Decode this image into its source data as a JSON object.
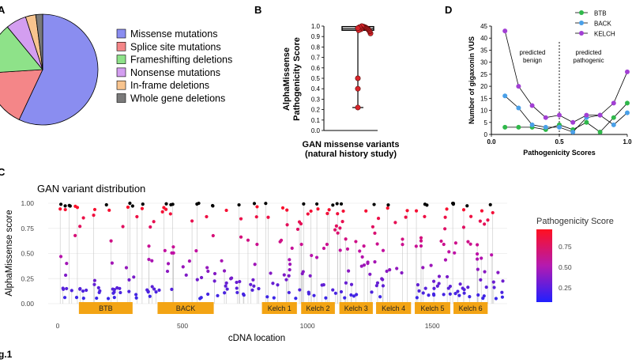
{
  "figure_caption": "g.1",
  "panels": {
    "A": {
      "letter": "A"
    },
    "B": {
      "letter": "B"
    },
    "C": {
      "letter": "C"
    },
    "D": {
      "letter": "D"
    }
  },
  "chart_data": [
    {
      "id": "A",
      "type": "pie",
      "title": "",
      "categories": [
        "Missense mutations",
        "Splice site mutations",
        "Frameshifting deletions",
        "Nonsense mutations",
        "In-frame deletions",
        "Whole gene deletions"
      ],
      "values": [
        57,
        17,
        15,
        6,
        3,
        2
      ],
      "colors": [
        "#8a8df0",
        "#f48688",
        "#8ee289",
        "#d39ef0",
        "#f8c48e",
        "#7a7a7a"
      ]
    },
    {
      "id": "B",
      "type": "scatter",
      "title": "",
      "xlabel": "GAN missense variants\n(natural history study)",
      "xlabel_lines": [
        "GAN missense variants",
        "(natural history study)"
      ],
      "ylabel_lines": [
        "AlphaMissense",
        "Pathogenicity Score"
      ],
      "ylim": [
        0,
        1.0
      ],
      "yticks": [
        "0.0",
        "0.1",
        "0.2",
        "0.3",
        "0.4",
        "0.5",
        "0.6",
        "0.7",
        "0.8",
        "0.9",
        "1.0"
      ],
      "values": [
        0.22,
        0.4,
        0.5,
        0.93,
        0.95,
        0.96,
        0.97,
        0.975,
        0.98,
        0.985,
        0.99,
        0.99,
        0.995,
        0.995,
        1.0,
        0.97,
        0.98,
        0.99,
        0.96,
        0.98
      ],
      "box": {
        "min": 0.22,
        "q1": 0.96,
        "median": 0.975,
        "q3": 0.995,
        "max": 1.0
      },
      "point_color": "#d9252b"
    },
    {
      "id": "C",
      "type": "scatter",
      "title": "GAN variant distribution",
      "xlabel": "cDNA location",
      "ylabel": "AlphaMissense score",
      "xlim": [
        0,
        1800
      ],
      "ylim": [
        0,
        1.0
      ],
      "xticks": [
        "0",
        "500",
        "1000",
        "1500"
      ],
      "yticks": [
        "0.00",
        "0.25",
        "0.50",
        "0.75",
        "1.00"
      ],
      "domains": [
        {
          "label": "BTB",
          "start": 85,
          "end": 300
        },
        {
          "label": "BACK",
          "start": 400,
          "end": 625
        },
        {
          "label": "Kelch 1",
          "start": 818,
          "end": 958
        },
        {
          "label": "Kelch 2",
          "start": 975,
          "end": 1110
        },
        {
          "label": "Kelch 3",
          "start": 1128,
          "end": 1262
        },
        {
          "label": "Kelch 4",
          "start": 1275,
          "end": 1415
        },
        {
          "label": "Kelch 5",
          "start": 1430,
          "end": 1572
        },
        {
          "label": "Kelch 6",
          "start": 1585,
          "end": 1722
        }
      ],
      "colorbar": {
        "title": "Pathogenicity Score",
        "ticks": [
          "0.75",
          "0.50",
          "0.25"
        ]
      },
      "dense_points": true
    },
    {
      "id": "D",
      "type": "line",
      "title": "",
      "xlabel": "Pathogenicity Scores",
      "ylabel": "Number of gigaxonin VUS",
      "x": [
        0.1,
        0.2,
        0.3,
        0.4,
        0.5,
        0.6,
        0.7,
        0.8,
        0.9,
        1.0
      ],
      "xticks": [
        "0.0",
        "0.5",
        "1.0"
      ],
      "yticks": [
        "0",
        "5",
        "10",
        "15",
        "20",
        "25",
        "30",
        "35",
        "40",
        "45"
      ],
      "ylim": [
        0,
        45
      ],
      "series": [
        {
          "name": "BTB",
          "color": "#2fb84a",
          "values": [
            3,
            3,
            3,
            2,
            4,
            2,
            5,
            1,
            7,
            13
          ]
        },
        {
          "name": "BACK",
          "color": "#4aa0e8",
          "values": [
            16,
            11,
            4,
            3,
            3,
            1,
            7,
            8,
            4,
            9
          ]
        },
        {
          "name": "KELCH",
          "color": "#a23fd4",
          "values": [
            43,
            20,
            12,
            7,
            8,
            5,
            8,
            8,
            13,
            26
          ]
        }
      ],
      "annotations": [
        "predicted",
        "benign",
        "predicted",
        "pathogenic"
      ]
    }
  ]
}
